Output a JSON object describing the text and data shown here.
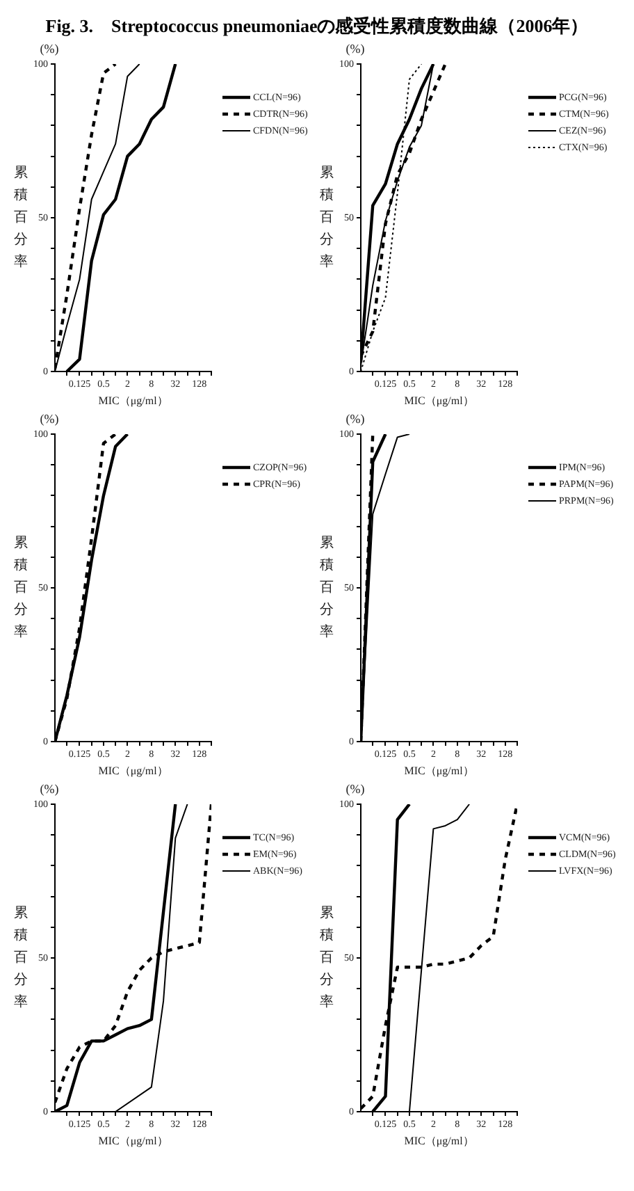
{
  "chart_data": [
    {
      "type": "line",
      "title": "Fig. 3.　Streptococcus pneumoniaeの感受性累積度数曲線（2006年）",
      "xlabel": "MIC（μg/ml）",
      "ylabel": "累積百分率",
      "annotations": [
        "(%)"
      ],
      "log": "x",
      "legend": "right",
      "marker": "none",
      "xlim": [
        0.03,
        256
      ],
      "xticks": [
        {
          "value": 0.06,
          "label": null
        },
        0.125,
        {
          "value": 0.25,
          "label": null
        },
        0.5,
        {
          "value": 1,
          "label": null
        },
        2,
        {
          "value": 4,
          "label": null
        },
        8,
        {
          "value": 16,
          "label": null
        },
        32,
        {
          "value": 64,
          "label": null
        },
        128,
        {
          "value": 256,
          "label": null
        }
      ],
      "ylim": [
        0,
        100
      ],
      "yticks": [
        0,
        {
          "value": 10,
          "label": null
        },
        {
          "value": 20,
          "label": null
        },
        {
          "value": 30,
          "label": null
        },
        {
          "value": 40,
          "label": null
        },
        50,
        {
          "value": 60,
          "label": null
        },
        {
          "value": 70,
          "label": null
        },
        {
          "value": 80,
          "label": null
        },
        {
          "value": 90,
          "label": null
        },
        100
      ],
      "series": [
        {
          "name": "CCL(N=96)",
          "color": "#000000",
          "line_style": "solid",
          "x": [
            0.06,
            0.125,
            0.25,
            0.5,
            1,
            2,
            4,
            8,
            16,
            32
          ],
          "values": [
            0,
            4,
            36,
            51,
            56,
            70,
            74,
            82,
            86,
            100
          ]
        },
        {
          "name": "CDTR(N=96)",
          "color": "#000000",
          "line_style": "dashed",
          "x": [
            0.03,
            0.06,
            0.125,
            0.25,
            0.5,
            1
          ],
          "values": [
            1,
            25,
            53,
            77,
            97,
            100
          ]
        },
        {
          "name": "CFDN(N=96)",
          "color": "#000000",
          "line_style": "solid",
          "x": [
            0.03,
            0.06,
            0.125,
            0.25,
            0.5,
            1,
            2,
            4
          ],
          "values": [
            0,
            15,
            30,
            56,
            65,
            74,
            96,
            100
          ]
        }
      ]
    },
    {
      "type": "line",
      "xlabel": "MIC（μg/ml）",
      "ylabel": "累積百分率",
      "annotations": [
        "(%)"
      ],
      "log": "x",
      "legend": "right",
      "marker": "none",
      "xlim": [
        0.03,
        256
      ],
      "xticks": [
        {
          "value": 0.06,
          "label": null
        },
        0.125,
        {
          "value": 0.25,
          "label": null
        },
        0.5,
        {
          "value": 1,
          "label": null
        },
        2,
        {
          "value": 4,
          "label": null
        },
        8,
        {
          "value": 16,
          "label": null
        },
        32,
        {
          "value": 64,
          "label": null
        },
        128,
        {
          "value": 256,
          "label": null
        }
      ],
      "ylim": [
        0,
        100
      ],
      "yticks": [
        0,
        {
          "value": 10,
          "label": null
        },
        {
          "value": 20,
          "label": null
        },
        {
          "value": 30,
          "label": null
        },
        {
          "value": 40,
          "label": null
        },
        50,
        {
          "value": 60,
          "label": null
        },
        {
          "value": 70,
          "label": null
        },
        {
          "value": 80,
          "label": null
        },
        {
          "value": 90,
          "label": null
        },
        100
      ],
      "series": [
        {
          "name": "PCG(N=96)",
          "color": "#000000",
          "line_style": "solid",
          "x": [
            0.03,
            0.06,
            0.125,
            0.25,
            0.5,
            1,
            2
          ],
          "values": [
            3,
            54,
            61,
            74,
            82,
            92,
            100
          ]
        },
        {
          "name": "CTM(N=96)",
          "color": "#000000",
          "line_style": "dashed",
          "x": [
            0.03,
            0.06,
            0.125,
            0.25,
            0.5,
            1,
            2,
            4
          ],
          "values": [
            5,
            13,
            48,
            64,
            71,
            82,
            91,
            100
          ]
        },
        {
          "name": "CEZ(N=96)",
          "color": "#000000",
          "line_style": "solid",
          "x": [
            0.03,
            0.06,
            0.125,
            0.25,
            0.5,
            1,
            2
          ],
          "values": [
            2,
            28,
            49,
            62,
            73,
            80,
            100
          ]
        },
        {
          "name": "CTX(N=96)",
          "color": "#000000",
          "line_style": "dotted",
          "x": [
            0.03,
            0.06,
            0.125,
            0.25,
            0.5,
            1
          ],
          "values": [
            0,
            13,
            24,
            58,
            95,
            100
          ]
        }
      ]
    },
    {
      "type": "line",
      "xlabel": "MIC（μg/ml）",
      "ylabel": "累積百分率",
      "annotations": [
        "(%)"
      ],
      "log": "x",
      "legend": "right",
      "marker": "none",
      "xlim": [
        0.03,
        256
      ],
      "xticks": [
        {
          "value": 0.06,
          "label": null
        },
        0.125,
        {
          "value": 0.25,
          "label": null
        },
        0.5,
        {
          "value": 1,
          "label": null
        },
        2,
        {
          "value": 4,
          "label": null
        },
        8,
        {
          "value": 16,
          "label": null
        },
        32,
        {
          "value": 64,
          "label": null
        },
        128,
        {
          "value": 256,
          "label": null
        }
      ],
      "ylim": [
        0,
        100
      ],
      "yticks": [
        0,
        {
          "value": 10,
          "label": null
        },
        {
          "value": 20,
          "label": null
        },
        {
          "value": 30,
          "label": null
        },
        {
          "value": 40,
          "label": null
        },
        50,
        {
          "value": 60,
          "label": null
        },
        {
          "value": 70,
          "label": null
        },
        {
          "value": 80,
          "label": null
        },
        {
          "value": 90,
          "label": null
        },
        100
      ],
      "series": [
        {
          "name": "CZOP(N=96)",
          "color": "#000000",
          "line_style": "solid",
          "x": [
            0.03,
            0.06,
            0.125,
            0.25,
            0.5,
            1,
            2
          ],
          "values": [
            0,
            15,
            34,
            59,
            80,
            96,
            100
          ]
        },
        {
          "name": "CPR(N=96)",
          "color": "#000000",
          "line_style": "dashed",
          "x": [
            0.03,
            0.06,
            0.125,
            0.25,
            0.5,
            1
          ],
          "values": [
            0,
            14,
            37,
            66,
            97,
            100
          ]
        }
      ]
    },
    {
      "type": "line",
      "xlabel": "MIC（μg/ml）",
      "ylabel": "累積百分率",
      "annotations": [
        "(%)"
      ],
      "log": "x",
      "legend": "right",
      "marker": "none",
      "xlim": [
        0.03,
        256
      ],
      "xticks": [
        {
          "value": 0.06,
          "label": null
        },
        0.125,
        {
          "value": 0.25,
          "label": null
        },
        0.5,
        {
          "value": 1,
          "label": null
        },
        2,
        {
          "value": 4,
          "label": null
        },
        8,
        {
          "value": 16,
          "label": null
        },
        32,
        {
          "value": 64,
          "label": null
        },
        128,
        {
          "value": 256,
          "label": null
        }
      ],
      "ylim": [
        0,
        100
      ],
      "yticks": [
        0,
        {
          "value": 10,
          "label": null
        },
        {
          "value": 20,
          "label": null
        },
        {
          "value": 30,
          "label": null
        },
        {
          "value": 40,
          "label": null
        },
        50,
        {
          "value": 60,
          "label": null
        },
        {
          "value": 70,
          "label": null
        },
        {
          "value": 80,
          "label": null
        },
        {
          "value": 90,
          "label": null
        },
        100
      ],
      "series": [
        {
          "name": "IPM(N=96)",
          "color": "#000000",
          "line_style": "solid",
          "x": [
            0.03,
            0.06,
            0.125
          ],
          "values": [
            0,
            91,
            100
          ]
        },
        {
          "name": "PAPM(N=96)",
          "color": "#000000",
          "line_style": "dashed",
          "x": [
            0.03,
            0.06
          ],
          "values": [
            0,
            100
          ]
        },
        {
          "name": "PRPM(N=96)",
          "color": "#000000",
          "line_style": "solid",
          "x": [
            0.03,
            0.06,
            0.125,
            0.25,
            0.5
          ],
          "values": [
            0,
            74,
            87,
            99,
            100
          ]
        }
      ]
    },
    {
      "type": "line",
      "xlabel": "MIC（μg/ml）",
      "ylabel": "累積百分率",
      "annotations": [
        "(%)"
      ],
      "log": "x",
      "legend": "right",
      "marker": "none",
      "xlim": [
        0.03,
        256
      ],
      "xticks": [
        {
          "value": 0.06,
          "label": null
        },
        0.125,
        {
          "value": 0.25,
          "label": null
        },
        0.5,
        {
          "value": 1,
          "label": null
        },
        2,
        {
          "value": 4,
          "label": null
        },
        8,
        {
          "value": 16,
          "label": null
        },
        32,
        {
          "value": 64,
          "label": null
        },
        128,
        {
          "value": 256,
          "label": null
        }
      ],
      "ylim": [
        0,
        100
      ],
      "yticks": [
        0,
        {
          "value": 10,
          "label": null
        },
        {
          "value": 20,
          "label": null
        },
        {
          "value": 30,
          "label": null
        },
        {
          "value": 40,
          "label": null
        },
        50,
        {
          "value": 60,
          "label": null
        },
        {
          "value": 70,
          "label": null
        },
        {
          "value": 80,
          "label": null
        },
        {
          "value": 90,
          "label": null
        },
        100
      ],
      "series": [
        {
          "name": "TC(N=96)",
          "color": "#000000",
          "line_style": "solid",
          "x": [
            0.03,
            0.06,
            0.125,
            0.25,
            0.5,
            1,
            2,
            4,
            8,
            16,
            32
          ],
          "values": [
            0,
            2,
            16,
            23,
            23,
            25,
            27,
            28,
            30,
            65,
            100
          ]
        },
        {
          "name": "EM(N=96)",
          "color": "#000000",
          "line_style": "dashed",
          "x": [
            0.03,
            0.06,
            0.125,
            0.25,
            0.5,
            1,
            2,
            4,
            8,
            16,
            32,
            64,
            128,
            256
          ],
          "values": [
            3,
            14,
            21,
            23,
            23,
            28,
            39,
            46,
            50,
            52,
            53,
            54,
            55,
            100
          ]
        },
        {
          "name": "ABK(N=96)",
          "color": "#000000",
          "line_style": "solid",
          "x": [
            1,
            8,
            16,
            32,
            64
          ],
          "values": [
            0,
            8,
            36,
            89,
            100
          ]
        }
      ]
    },
    {
      "type": "line",
      "xlabel": "MIC（μg/ml）",
      "ylabel": "累積百分率",
      "annotations": [
        "(%)"
      ],
      "log": "x",
      "legend": "right",
      "marker": "none",
      "xlim": [
        0.03,
        256
      ],
      "xticks": [
        {
          "value": 0.06,
          "label": null
        },
        0.125,
        {
          "value": 0.25,
          "label": null
        },
        0.5,
        {
          "value": 1,
          "label": null
        },
        2,
        {
          "value": 4,
          "label": null
        },
        8,
        {
          "value": 16,
          "label": null
        },
        32,
        {
          "value": 64,
          "label": null
        },
        128,
        {
          "value": 256,
          "label": null
        }
      ],
      "ylim": [
        0,
        100
      ],
      "yticks": [
        0,
        {
          "value": 10,
          "label": null
        },
        {
          "value": 20,
          "label": null
        },
        {
          "value": 30,
          "label": null
        },
        {
          "value": 40,
          "label": null
        },
        50,
        {
          "value": 60,
          "label": null
        },
        {
          "value": 70,
          "label": null
        },
        {
          "value": 80,
          "label": null
        },
        {
          "value": 90,
          "label": null
        },
        100
      ],
      "series": [
        {
          "name": "VCM(N=96)",
          "color": "#000000",
          "line_style": "solid",
          "x": [
            0.06,
            0.125,
            0.25,
            0.5
          ],
          "values": [
            0,
            5,
            95,
            100
          ]
        },
        {
          "name": "CLDM(N=96)",
          "color": "#000000",
          "line_style": "dashed",
          "x": [
            0.03,
            0.06,
            0.125,
            0.25,
            0.5,
            1,
            2,
            4,
            8,
            16,
            32,
            64,
            128,
            256
          ],
          "values": [
            1,
            5,
            28,
            47,
            47,
            47,
            48,
            48,
            49,
            50,
            54,
            57,
            82,
            100
          ]
        },
        {
          "name": "LVFX(N=96)",
          "color": "#000000",
          "line_style": "solid",
          "x": [
            0.5,
            2,
            4,
            8,
            16
          ],
          "values": [
            0,
            92,
            93,
            95,
            100
          ]
        }
      ]
    }
  ]
}
